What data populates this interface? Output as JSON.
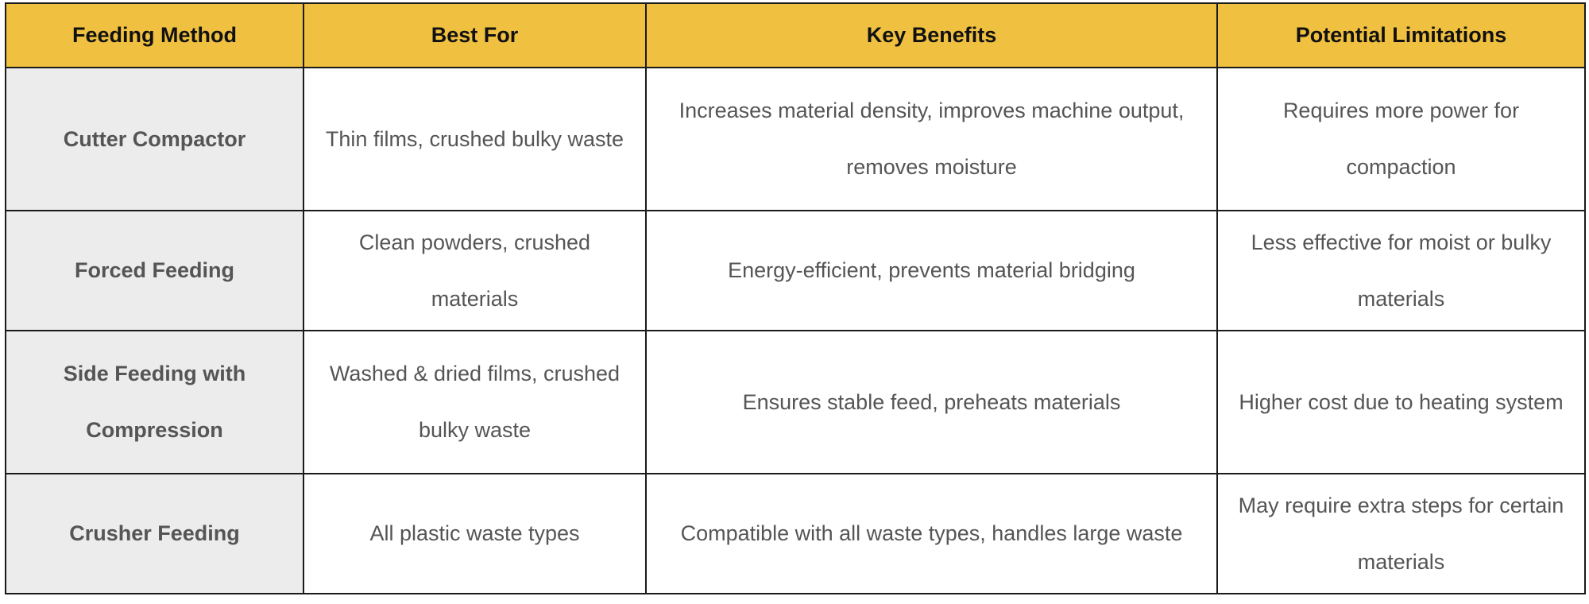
{
  "table": {
    "headers": [
      "Feeding Method",
      "Best For",
      "Key Benefits",
      "Potential Limitations"
    ],
    "rows": [
      {
        "method": "Cutter Compactor",
        "best_for": "Thin films, crushed bulky waste",
        "benefits": "Increases material density, improves machine output, removes moisture",
        "limitations": "Requires more power for compaction"
      },
      {
        "method": "Forced Feeding",
        "best_for": "Clean powders, crushed materials",
        "benefits": "Energy-efficient, prevents material bridging",
        "limitations": "Less effective for moist or bulky materials"
      },
      {
        "method": "Side Feeding with Compression",
        "best_for": "Washed & dried films, crushed bulky waste",
        "benefits": "Ensures stable feed, preheats materials",
        "limitations": "Higher cost due to heating system"
      },
      {
        "method": "Crusher Feeding",
        "best_for": "All plastic waste types",
        "benefits": "Compatible with all waste types, handles large waste",
        "limitations": "May require extra steps for certain materials"
      }
    ]
  },
  "colors": {
    "header_bg": "#f0c040",
    "method_bg": "#ececec",
    "border": "#1a1a1a",
    "body_text": "#555555"
  }
}
